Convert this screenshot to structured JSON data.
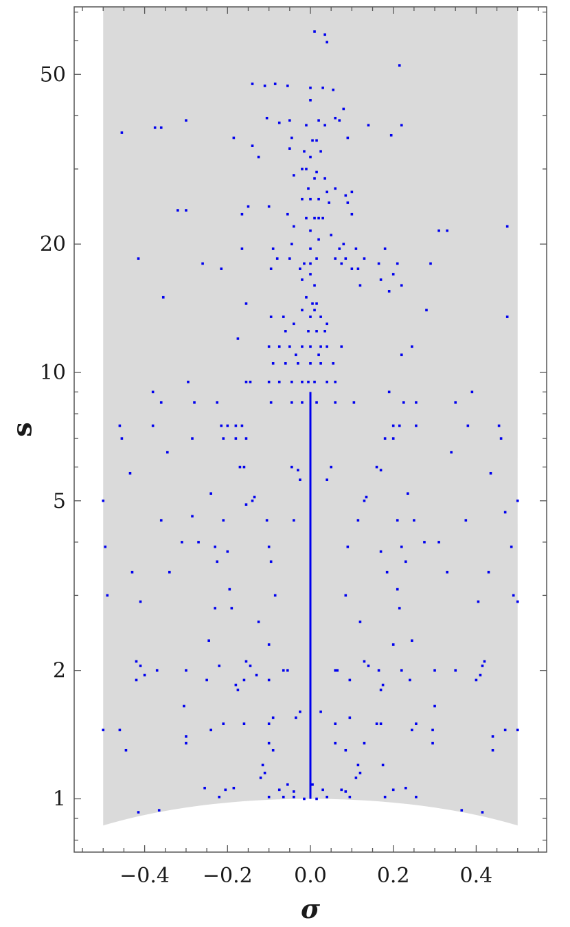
{
  "chart_data": {
    "type": "scatter",
    "title": "",
    "xlabel": "σ",
    "ylabel": "s",
    "y_scale": "log",
    "xlim": [
      -0.57,
      0.57
    ],
    "ylim": [
      0.75,
      72
    ],
    "x_ticks": [
      {
        "value": -0.4,
        "label": "−0.4"
      },
      {
        "value": -0.2,
        "label": "−0.2"
      },
      {
        "value": 0.0,
        "label": "0.0"
      },
      {
        "value": 0.2,
        "label": "0.2"
      },
      {
        "value": 0.4,
        "label": "0.4"
      }
    ],
    "y_ticks": [
      {
        "value": 1,
        "label": "1"
      },
      {
        "value": 2,
        "label": "2"
      },
      {
        "value": 5,
        "label": "5"
      },
      {
        "value": 10,
        "label": "10"
      },
      {
        "value": 20,
        "label": "20"
      },
      {
        "value": 50,
        "label": "50"
      }
    ],
    "region": {
      "x_range": [
        -0.5,
        0.5
      ],
      "s_max": 72,
      "lower_boundary": "s = sqrt(1 − σ²)",
      "color": "#dadada"
    },
    "grid": false,
    "legend": "none",
    "marker_color": "#0000ee",
    "central_line": {
      "x": 0.0,
      "s_from": 1.0,
      "s_to": 9.0
    },
    "points": [
      [
        0.01,
        63
      ],
      [
        0.035,
        62
      ],
      [
        0.04,
        59.5
      ],
      [
        0.215,
        52.5
      ],
      [
        -0.14,
        47.5
      ],
      [
        -0.11,
        47
      ],
      [
        -0.085,
        47.5
      ],
      [
        -0.055,
        47
      ],
      [
        0.0,
        46.5
      ],
      [
        0.03,
        46.5
      ],
      [
        0.055,
        46
      ],
      [
        0.0,
        43.5
      ],
      [
        0.08,
        41.5
      ],
      [
        -0.3,
        39
      ],
      [
        -0.105,
        39.5
      ],
      [
        -0.05,
        39
      ],
      [
        0.02,
        39
      ],
      [
        0.06,
        39.5
      ],
      [
        0.07,
        39
      ],
      [
        -0.455,
        36.5
      ],
      [
        -0.375,
        37.5
      ],
      [
        -0.36,
        37.5
      ],
      [
        -0.185,
        35.5
      ],
      [
        -0.075,
        38.5
      ],
      [
        -0.01,
        38
      ],
      [
        0.035,
        38
      ],
      [
        0.14,
        38
      ],
      [
        0.22,
        38
      ],
      [
        0.195,
        36
      ],
      [
        -0.045,
        35.5
      ],
      [
        0.005,
        35
      ],
      [
        0.015,
        35
      ],
      [
        0.09,
        35.5
      ],
      [
        -0.14,
        34
      ],
      [
        -0.05,
        33.5
      ],
      [
        -0.015,
        33
      ],
      [
        0.025,
        33
      ],
      [
        0.0,
        32
      ],
      [
        -0.125,
        32
      ],
      [
        -0.02,
        30
      ],
      [
        -0.01,
        30
      ],
      [
        0.015,
        29.5
      ],
      [
        0.01,
        28.5
      ],
      [
        -0.04,
        29
      ],
      [
        0.035,
        28.5
      ],
      [
        -0.005,
        27
      ],
      [
        0.04,
        26.5
      ],
      [
        0.06,
        27
      ],
      [
        0.1,
        26.5
      ],
      [
        0.085,
        26
      ],
      [
        -0.02,
        25.5
      ],
      [
        0.0,
        25.5
      ],
      [
        0.02,
        25.5
      ],
      [
        0.045,
        25
      ],
      [
        0.09,
        25
      ],
      [
        -0.1,
        24.5
      ],
      [
        -0.15,
        24.5
      ],
      [
        -0.32,
        24
      ],
      [
        -0.3,
        24
      ],
      [
        -0.165,
        23.5
      ],
      [
        -0.055,
        23.5
      ],
      [
        -0.01,
        23
      ],
      [
        0.01,
        23
      ],
      [
        0.02,
        23
      ],
      [
        0.03,
        23
      ],
      [
        0.1,
        23.5
      ],
      [
        0.31,
        21.5
      ],
      [
        0.33,
        21.5
      ],
      [
        0.475,
        22
      ],
      [
        -0.04,
        22
      ],
      [
        0.0,
        21.5
      ],
      [
        0.05,
        21
      ],
      [
        -0.045,
        20
      ],
      [
        0.02,
        20.5
      ],
      [
        -0.09,
        19.5
      ],
      [
        -0.165,
        19.5
      ],
      [
        -0.0,
        19.5
      ],
      [
        0.07,
        19.5
      ],
      [
        0.08,
        20
      ],
      [
        0.11,
        19.5
      ],
      [
        0.18,
        19.5
      ],
      [
        -0.415,
        18.5
      ],
      [
        -0.26,
        18
      ],
      [
        -0.215,
        17.5
      ],
      [
        -0.08,
        18.5
      ],
      [
        -0.05,
        18.5
      ],
      [
        -0.015,
        18
      ],
      [
        0.0,
        18
      ],
      [
        0.015,
        18.5
      ],
      [
        0.06,
        18.5
      ],
      [
        0.075,
        18
      ],
      [
        0.085,
        18.5
      ],
      [
        0.13,
        18.5
      ],
      [
        0.165,
        18
      ],
      [
        0.21,
        18
      ],
      [
        0.29,
        18
      ],
      [
        -0.095,
        17.5
      ],
      [
        -0.025,
        17.5
      ],
      [
        0.0,
        17
      ],
      [
        0.1,
        17.5
      ],
      [
        0.115,
        17.5
      ],
      [
        0.17,
        16.5
      ],
      [
        0.2,
        17
      ],
      [
        -0.02,
        16.5
      ],
      [
        0.01,
        16
      ],
      [
        0.22,
        16
      ],
      [
        0.12,
        16
      ],
      [
        0.19,
        15.5
      ],
      [
        -0.355,
        15
      ],
      [
        -0.01,
        15
      ],
      [
        0.005,
        14.5
      ],
      [
        0.015,
        14.5
      ],
      [
        -0.155,
        14.5
      ],
      [
        0.28,
        14
      ],
      [
        -0.02,
        14
      ],
      [
        0.0,
        13.5
      ],
      [
        0.01,
        14
      ],
      [
        -0.095,
        13.5
      ],
      [
        0.475,
        13.5
      ],
      [
        -0.065,
        13.5
      ],
      [
        -0.04,
        13
      ],
      [
        0.025,
        13.5
      ],
      [
        0.04,
        13
      ],
      [
        -0.06,
        12.5
      ],
      [
        -0.005,
        12.5
      ],
      [
        0.015,
        12.5
      ],
      [
        0.035,
        12.5
      ],
      [
        -0.175,
        12
      ],
      [
        -0.1,
        11.5
      ],
      [
        -0.075,
        11.5
      ],
      [
        -0.05,
        11.5
      ],
      [
        -0.02,
        11.5
      ],
      [
        0.0,
        11.5
      ],
      [
        0.025,
        11.5
      ],
      [
        0.04,
        11.5
      ],
      [
        0.075,
        11.5
      ],
      [
        0.245,
        11.5
      ],
      [
        -0.035,
        11
      ],
      [
        0.02,
        11
      ],
      [
        0.22,
        11
      ],
      [
        -0.09,
        10.5
      ],
      [
        -0.06,
        10.5
      ],
      [
        -0.03,
        10.5
      ],
      [
        0.0,
        10.5
      ],
      [
        0.025,
        10.5
      ],
      [
        0.055,
        10.5
      ],
      [
        -0.1,
        9.5
      ],
      [
        -0.075,
        9.5
      ],
      [
        -0.045,
        9.5
      ],
      [
        -0.02,
        9.5
      ],
      [
        -0.005,
        9.5
      ],
      [
        0.01,
        9.5
      ],
      [
        0.04,
        9.5
      ],
      [
        0.06,
        9.5
      ],
      [
        -0.295,
        9.5
      ],
      [
        -0.155,
        9.5
      ],
      [
        -0.145,
        9.5
      ],
      [
        -0.045,
        8.5
      ],
      [
        -0.02,
        8.5
      ],
      [
        0.015,
        8.5
      ],
      [
        0.06,
        8.5
      ],
      [
        -0.38,
        9
      ],
      [
        -0.36,
        8.5
      ],
      [
        -0.095,
        8.5
      ],
      [
        0.105,
        8.5
      ],
      [
        0.19,
        9
      ],
      [
        0.35,
        8.5
      ],
      [
        0.39,
        9
      ],
      [
        -0.28,
        8.5
      ],
      [
        -0.225,
        8.5
      ],
      [
        0.225,
        8.5
      ],
      [
        0.255,
        8.5
      ],
      [
        -0.46,
        7.5
      ],
      [
        -0.38,
        7.5
      ],
      [
        -0.215,
        7.5
      ],
      [
        -0.2,
        7.5
      ],
      [
        -0.18,
        7.5
      ],
      [
        0.2,
        7.5
      ],
      [
        0.215,
        7.5
      ],
      [
        0.255,
        7.5
      ],
      [
        0.38,
        7.5
      ],
      [
        0.455,
        7.5
      ],
      [
        -0.455,
        7
      ],
      [
        -0.285,
        7
      ],
      [
        -0.21,
        7
      ],
      [
        -0.18,
        7
      ],
      [
        -0.155,
        7
      ],
      [
        -0.165,
        7.5
      ],
      [
        0.18,
        7
      ],
      [
        0.2,
        7
      ],
      [
        0.34,
        6.5
      ],
      [
        -0.345,
        6.5
      ],
      [
        0.46,
        7
      ],
      [
        -0.17,
        6
      ],
      [
        -0.16,
        6
      ],
      [
        -0.045,
        6
      ],
      [
        -0.03,
        5.9
      ],
      [
        0.05,
        6
      ],
      [
        0.16,
        6
      ],
      [
        0.17,
        5.9
      ],
      [
        -0.435,
        5.8
      ],
      [
        0.435,
        5.8
      ],
      [
        -0.025,
        5.6
      ],
      [
        0.04,
        5.6
      ],
      [
        -0.5,
        5
      ],
      [
        -0.24,
        5.2
      ],
      [
        -0.14,
        5.0
      ],
      [
        -0.135,
        5.1
      ],
      [
        -0.155,
        4.9
      ],
      [
        0.135,
        5.1
      ],
      [
        0.13,
        5.0
      ],
      [
        0.5,
        5
      ],
      [
        0.235,
        5.2
      ],
      [
        -0.36,
        4.5
      ],
      [
        -0.285,
        4.6
      ],
      [
        -0.21,
        4.5
      ],
      [
        -0.105,
        4.5
      ],
      [
        -0.04,
        4.5
      ],
      [
        0.115,
        4.5
      ],
      [
        0.21,
        4.5
      ],
      [
        0.25,
        4.5
      ],
      [
        0.375,
        4.5
      ],
      [
        0.47,
        4.7
      ],
      [
        -0.495,
        3.9
      ],
      [
        -0.31,
        4.0
      ],
      [
        -0.27,
        4.0
      ],
      [
        -0.23,
        3.9
      ],
      [
        -0.2,
        3.8
      ],
      [
        -0.1,
        3.9
      ],
      [
        0.09,
        3.9
      ],
      [
        0.17,
        3.8
      ],
      [
        0.22,
        3.9
      ],
      [
        0.275,
        4.0
      ],
      [
        0.31,
        4.0
      ],
      [
        0.485,
        3.9
      ],
      [
        -0.43,
        3.4
      ],
      [
        -0.34,
        3.4
      ],
      [
        -0.225,
        3.6
      ],
      [
        -0.095,
        3.6
      ],
      [
        0.185,
        3.4
      ],
      [
        0.23,
        3.6
      ],
      [
        0.33,
        3.4
      ],
      [
        0.43,
        3.4
      ],
      [
        -0.49,
        3.0
      ],
      [
        -0.41,
        2.9
      ],
      [
        -0.195,
        3.1
      ],
      [
        -0.085,
        3.0
      ],
      [
        0.085,
        3.0
      ],
      [
        0.21,
        3.1
      ],
      [
        0.405,
        2.9
      ],
      [
        0.49,
        3.0
      ],
      [
        0.5,
        2.9
      ],
      [
        -0.23,
        2.8
      ],
      [
        -0.19,
        2.8
      ],
      [
        -0.125,
        2.6
      ],
      [
        0.12,
        2.6
      ],
      [
        0.215,
        2.8
      ],
      [
        -0.245,
        2.35
      ],
      [
        0.245,
        2.35
      ],
      [
        0.2,
        2.3
      ],
      [
        -0.1,
        2.3
      ],
      [
        -0.42,
        2.1
      ],
      [
        -0.41,
        2.05
      ],
      [
        -0.4,
        1.95
      ],
      [
        -0.37,
        2.0
      ],
      [
        -0.3,
        2.0
      ],
      [
        -0.22,
        2.05
      ],
      [
        -0.155,
        2.1
      ],
      [
        -0.145,
        2.05
      ],
      [
        -0.16,
        1.9
      ],
      [
        -0.18,
        1.85
      ],
      [
        -0.175,
        1.8
      ],
      [
        -0.13,
        1.95
      ],
      [
        -0.065,
        2.0
      ],
      [
        -0.055,
        2.0
      ],
      [
        0.06,
        2.0
      ],
      [
        0.065,
        2.0
      ],
      [
        0.14,
        2.05
      ],
      [
        0.13,
        2.1
      ],
      [
        0.165,
        2.0
      ],
      [
        0.175,
        1.85
      ],
      [
        0.17,
        1.8
      ],
      [
        0.22,
        2.0
      ],
      [
        0.3,
        2.0
      ],
      [
        0.35,
        2.0
      ],
      [
        0.4,
        1.9
      ],
      [
        0.41,
        1.95
      ],
      [
        0.415,
        2.05
      ],
      [
        0.42,
        2.1
      ],
      [
        -0.42,
        1.9
      ],
      [
        -0.25,
        1.9
      ],
      [
        -0.1,
        1.9
      ],
      [
        0.095,
        1.9
      ],
      [
        0.24,
        1.9
      ],
      [
        -0.305,
        1.65
      ],
      [
        0.3,
        1.65
      ],
      [
        -0.025,
        1.6
      ],
      [
        0.025,
        1.6
      ],
      [
        -0.5,
        1.45
      ],
      [
        -0.46,
        1.45
      ],
      [
        -0.3,
        1.4
      ],
      [
        -0.24,
        1.45
      ],
      [
        -0.21,
        1.5
      ],
      [
        -0.16,
        1.5
      ],
      [
        -0.1,
        1.5
      ],
      [
        -0.09,
        1.55
      ],
      [
        -0.035,
        1.55
      ],
      [
        0.06,
        1.5
      ],
      [
        0.095,
        1.55
      ],
      [
        0.16,
        1.5
      ],
      [
        0.17,
        1.5
      ],
      [
        0.245,
        1.45
      ],
      [
        0.255,
        1.5
      ],
      [
        0.295,
        1.45
      ],
      [
        0.44,
        1.4
      ],
      [
        0.47,
        1.45
      ],
      [
        0.5,
        1.45
      ],
      [
        -0.3,
        1.35
      ],
      [
        -0.1,
        1.35
      ],
      [
        -0.09,
        1.3
      ],
      [
        0.06,
        1.35
      ],
      [
        0.085,
        1.3
      ],
      [
        0.13,
        1.35
      ],
      [
        0.295,
        1.35
      ],
      [
        -0.445,
        1.3
      ],
      [
        0.44,
        1.3
      ],
      [
        -0.115,
        1.2
      ],
      [
        -0.11,
        1.15
      ],
      [
        0.115,
        1.2
      ],
      [
        0.12,
        1.15
      ],
      [
        0.175,
        1.2
      ],
      [
        -0.12,
        1.12
      ],
      [
        0.11,
        1.12
      ],
      [
        -0.255,
        1.06
      ],
      [
        -0.205,
        1.05
      ],
      [
        -0.185,
        1.06
      ],
      [
        -0.075,
        1.05
      ],
      [
        -0.04,
        1.04
      ],
      [
        0.03,
        1.05
      ],
      [
        0.075,
        1.05
      ],
      [
        0.085,
        1.04
      ],
      [
        0.2,
        1.05
      ],
      [
        0.23,
        1.06
      ],
      [
        -0.22,
        1.01
      ],
      [
        -0.1,
        1.01
      ],
      [
        -0.065,
        1.01
      ],
      [
        -0.04,
        1.01
      ],
      [
        -0.015,
        1.0
      ],
      [
        0.015,
        1.0
      ],
      [
        0.04,
        1.01
      ],
      [
        0.095,
        1.01
      ],
      [
        0.18,
        1.01
      ],
      [
        0.255,
        1.01
      ],
      [
        0.005,
        1.08
      ],
      [
        -0.055,
        1.08
      ],
      [
        -0.415,
        0.93
      ],
      [
        -0.365,
        0.94
      ],
      [
        0.365,
        0.94
      ],
      [
        0.415,
        0.93
      ]
    ]
  }
}
